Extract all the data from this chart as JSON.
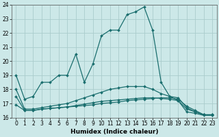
{
  "xlabel": "Humidex (Indice chaleur)",
  "background_color": "#cce8e8",
  "grid_color": "#aacccc",
  "line_color": "#1a6e6e",
  "xlim": [
    -0.5,
    23.5
  ],
  "ylim": [
    16,
    24
  ],
  "yticks": [
    16,
    17,
    18,
    19,
    20,
    21,
    22,
    23,
    24
  ],
  "xticks": [
    0,
    1,
    2,
    3,
    4,
    5,
    6,
    7,
    8,
    9,
    10,
    11,
    12,
    13,
    14,
    15,
    16,
    17,
    18,
    19,
    20,
    21,
    22,
    23
  ],
  "line1_x": [
    0,
    1,
    2,
    3,
    4,
    5,
    6,
    7,
    8,
    9,
    10,
    11,
    12,
    13,
    14,
    15,
    16,
    17,
    18,
    19,
    20,
    21,
    22,
    23
  ],
  "line1_y": [
    19.0,
    17.3,
    17.5,
    18.5,
    18.5,
    19.0,
    19.0,
    20.5,
    18.5,
    19.8,
    21.8,
    22.2,
    22.2,
    23.3,
    23.5,
    23.85,
    22.2,
    18.5,
    17.5,
    17.2,
    16.4,
    16.3,
    16.15,
    16.15
  ],
  "line2_x": [
    0,
    1,
    2,
    3,
    4,
    5,
    6,
    7,
    8,
    9,
    10,
    11,
    12,
    13,
    14,
    15,
    16,
    17,
    18,
    19,
    20,
    21,
    22,
    23
  ],
  "line2_y": [
    17.5,
    16.5,
    16.5,
    16.6,
    16.65,
    16.7,
    16.75,
    16.8,
    16.85,
    16.9,
    17.0,
    17.05,
    17.1,
    17.2,
    17.25,
    17.3,
    17.35,
    17.4,
    17.4,
    17.3,
    16.8,
    16.5,
    16.2,
    16.2
  ],
  "line3_x": [
    0,
    1,
    2,
    3,
    4,
    5,
    6,
    7,
    8,
    9,
    10,
    11,
    12,
    13,
    14,
    15,
    16,
    17,
    18,
    19,
    20,
    21,
    22,
    23
  ],
  "line3_y": [
    18.0,
    16.6,
    16.6,
    16.7,
    16.8,
    16.9,
    17.0,
    17.2,
    17.4,
    17.6,
    17.8,
    18.0,
    18.1,
    18.2,
    18.2,
    18.2,
    18.0,
    17.7,
    17.5,
    17.4,
    16.7,
    16.4,
    16.2,
    16.2
  ],
  "line4_x": [
    0,
    1,
    2,
    3,
    4,
    5,
    6,
    7,
    8,
    9,
    10,
    11,
    12,
    13,
    14,
    15,
    16,
    17,
    18,
    19,
    20,
    21,
    22,
    23
  ],
  "line4_y": [
    16.9,
    16.5,
    16.5,
    16.6,
    16.65,
    16.7,
    16.75,
    16.85,
    16.95,
    17.05,
    17.15,
    17.2,
    17.25,
    17.3,
    17.35,
    17.4,
    17.4,
    17.35,
    17.3,
    17.2,
    16.6,
    16.4,
    16.2,
    16.15
  ]
}
